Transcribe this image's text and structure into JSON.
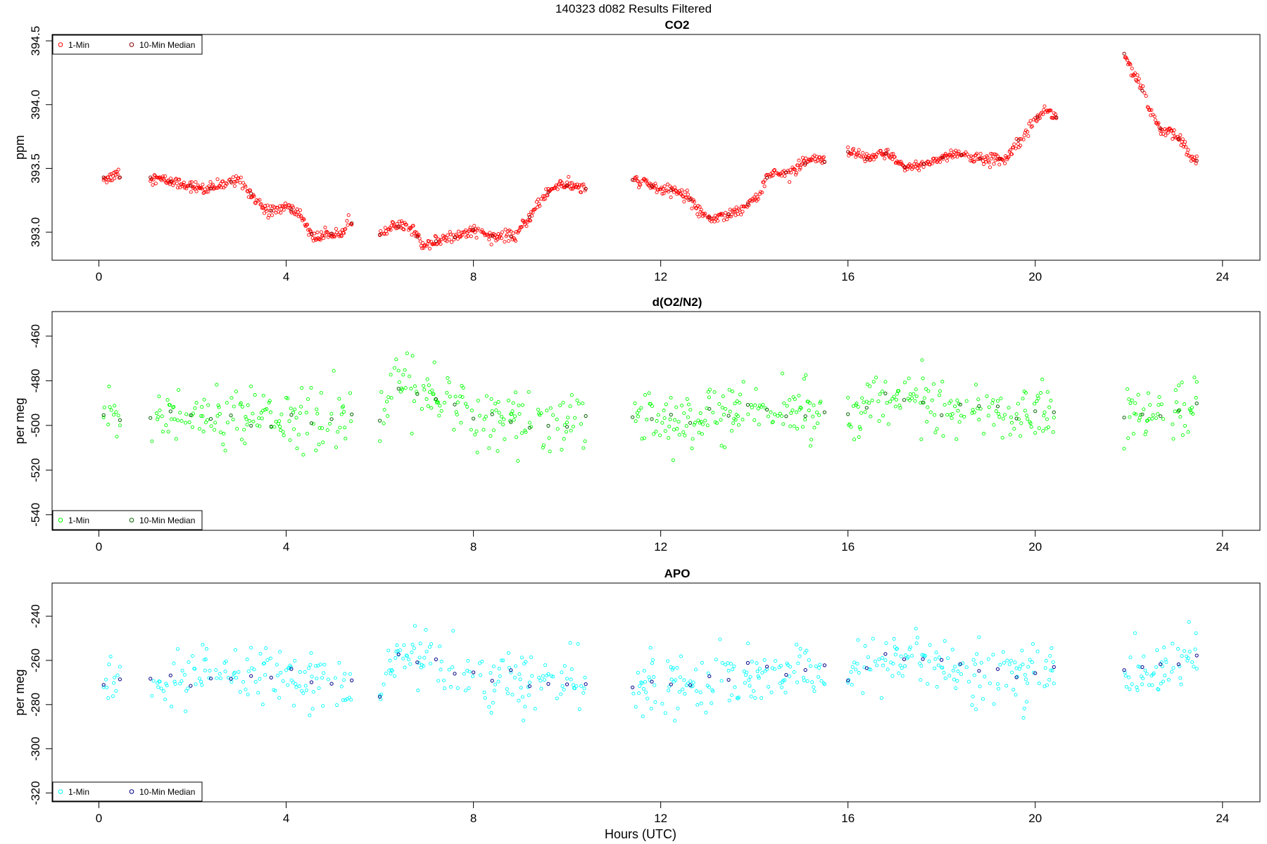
{
  "page": {
    "suptitle": "140323   d082   Results Filtered",
    "xlabel": "Hours (UTC)"
  },
  "chart_data": [
    {
      "type": "scatter",
      "title": "CO2",
      "xlabel": "",
      "ylabel": "ppm",
      "xlim": [
        -1.0,
        24.8
      ],
      "ylim": [
        392.78,
        394.55
      ],
      "xticks": [
        0,
        4,
        8,
        12,
        16,
        20,
        24
      ],
      "yticks": [
        393.0,
        393.5,
        394.0,
        394.5
      ],
      "ytick_labels": [
        "393.0",
        "393.5",
        "394.0",
        "394.5"
      ],
      "legend": {
        "placement": "top-left",
        "entries": [
          "1-Min",
          "10-Min Median"
        ]
      },
      "colors": {
        "one_min": "#ff0000",
        "median": "#8b0000"
      },
      "segments": [
        {
          "t": [
            0.1,
            0.2,
            0.3,
            0.4,
            0.45
          ],
          "v": [
            393.43,
            393.42,
            393.44,
            393.48,
            393.43
          ]
        },
        {
          "t": [
            1.1,
            1.5,
            2.0,
            2.3,
            2.7,
            3.0,
            3.3,
            3.6,
            4.0,
            4.3,
            4.6,
            4.9,
            5.2,
            5.4
          ],
          "v": [
            393.43,
            393.4,
            393.36,
            393.33,
            393.38,
            393.42,
            393.28,
            393.16,
            393.2,
            393.14,
            392.95,
            392.98,
            393.02,
            393.07
          ]
        },
        {
          "t": [
            6.0,
            6.3,
            6.7,
            6.9,
            7.2,
            7.6,
            8.0,
            8.5,
            8.9,
            9.2,
            9.5,
            9.8,
            10.1,
            10.4
          ],
          "v": [
            392.98,
            393.05,
            393.03,
            392.9,
            392.93,
            392.96,
            393.02,
            392.96,
            392.97,
            393.12,
            393.28,
            393.38,
            393.36,
            393.34
          ]
        },
        {
          "t": [
            11.4,
            11.7,
            12.0,
            12.3,
            12.6,
            12.8,
            13.1,
            13.4,
            13.8,
            14.1,
            14.3,
            14.7,
            15.0,
            15.3,
            15.5
          ],
          "v": [
            393.41,
            393.38,
            393.33,
            393.33,
            393.27,
            393.18,
            393.1,
            393.13,
            393.2,
            393.3,
            393.45,
            393.47,
            393.52,
            393.58,
            393.55
          ]
        },
        {
          "t": [
            16.0,
            16.4,
            16.8,
            17.2,
            17.5,
            17.9,
            18.3,
            18.7,
            19.0,
            19.4,
            19.6,
            19.9,
            20.2,
            20.45
          ],
          "v": [
            393.63,
            393.57,
            393.62,
            393.51,
            393.52,
            393.57,
            393.62,
            393.58,
            393.57,
            393.58,
            393.7,
            393.85,
            393.96,
            393.9
          ]
        },
        {
          "t": [
            21.9,
            22.1,
            22.3,
            22.5,
            22.7,
            22.9,
            23.1,
            23.3,
            23.45
          ],
          "v": [
            394.4,
            394.25,
            394.1,
            393.9,
            393.8,
            393.78,
            393.72,
            393.6,
            393.56
          ]
        }
      ]
    },
    {
      "type": "scatter",
      "title": "d(O2/N2)",
      "xlabel": "",
      "ylabel": "per meg",
      "xlim": [
        -1.0,
        24.8
      ],
      "ylim": [
        -547,
        -449
      ],
      "xticks": [
        0,
        4,
        8,
        12,
        16,
        20,
        24
      ],
      "yticks": [
        -460,
        -480,
        -500,
        -520,
        -540
      ],
      "ytick_labels": [
        "-460",
        "-480",
        "-500",
        "-520",
        "-540"
      ],
      "legend": {
        "placement": "bottom-left",
        "entries": [
          "1-Min",
          "10-Min Median"
        ]
      },
      "colors": {
        "one_min": "#00ff00",
        "median": "#006400"
      },
      "segments": [
        {
          "t": [
            0.1,
            0.25,
            0.45
          ],
          "v": [
            -496,
            -493,
            -497
          ]
        },
        {
          "t": [
            1.1,
            1.8,
            2.6,
            3.4,
            4.2,
            5.0,
            5.4
          ],
          "v": [
            -497,
            -497,
            -497,
            -497,
            -496,
            -498,
            -496
          ]
        },
        {
          "t": [
            6.0,
            6.3,
            7.0,
            7.6,
            8.3,
            9.0,
            9.6,
            10.4
          ],
          "v": [
            -500,
            -484,
            -485,
            -492,
            -497,
            -498,
            -499,
            -496
          ]
        },
        {
          "t": [
            11.4,
            12.2,
            13.0,
            13.8,
            14.6,
            15.5
          ],
          "v": [
            -496,
            -497,
            -496,
            -493,
            -494,
            -494
          ]
        },
        {
          "t": [
            16.0,
            16.6,
            17.2,
            17.8,
            18.4,
            19.0,
            19.6,
            20.4
          ],
          "v": [
            -495,
            -487,
            -488,
            -490,
            -493,
            -495,
            -496,
            -495
          ]
        },
        {
          "t": [
            21.9,
            22.5,
            23.0,
            23.45
          ],
          "v": [
            -498,
            -496,
            -494,
            -490
          ]
        }
      ]
    },
    {
      "type": "scatter",
      "title": "APO",
      "xlabel": "Hours (UTC)",
      "ylabel": "per meg",
      "xlim": [
        -1.0,
        24.8
      ],
      "ylim": [
        -324,
        -225
      ],
      "xticks": [
        0,
        4,
        8,
        12,
        16,
        20,
        24
      ],
      "yticks": [
        -240,
        -260,
        -280,
        -300,
        -320
      ],
      "ytick_labels": [
        "-240",
        "-260",
        "-280",
        "-300",
        "-320"
      ],
      "legend": {
        "placement": "bottom-left",
        "entries": [
          "1-Min",
          "10-Min Median"
        ]
      },
      "colors": {
        "one_min": "#00ffff",
        "median": "#00008b"
      },
      "segments": [
        {
          "t": [
            0.1,
            0.25,
            0.45
          ],
          "v": [
            -269,
            -265,
            -268
          ]
        },
        {
          "t": [
            1.1,
            1.8,
            2.6,
            3.4,
            4.2,
            5.0,
            5.4
          ],
          "v": [
            -271,
            -269,
            -268,
            -268,
            -268,
            -272,
            -270
          ]
        },
        {
          "t": [
            6.0,
            6.3,
            7.0,
            7.6,
            8.3,
            9.0,
            9.6,
            10.4
          ],
          "v": [
            -275,
            -258,
            -258,
            -263,
            -268,
            -270,
            -271,
            -270
          ]
        },
        {
          "t": [
            11.4,
            12.2,
            13.0,
            13.8,
            14.6,
            15.5
          ],
          "v": [
            -270,
            -271,
            -270,
            -266,
            -264,
            -264
          ]
        },
        {
          "t": [
            16.0,
            16.6,
            17.2,
            17.8,
            18.4,
            19.0,
            19.6,
            20.4
          ],
          "v": [
            -268,
            -260,
            -258,
            -262,
            -264,
            -266,
            -267,
            -265
          ]
        },
        {
          "t": [
            21.9,
            22.5,
            23.0,
            23.45
          ],
          "v": [
            -266,
            -264,
            -262,
            -258
          ]
        }
      ]
    }
  ]
}
